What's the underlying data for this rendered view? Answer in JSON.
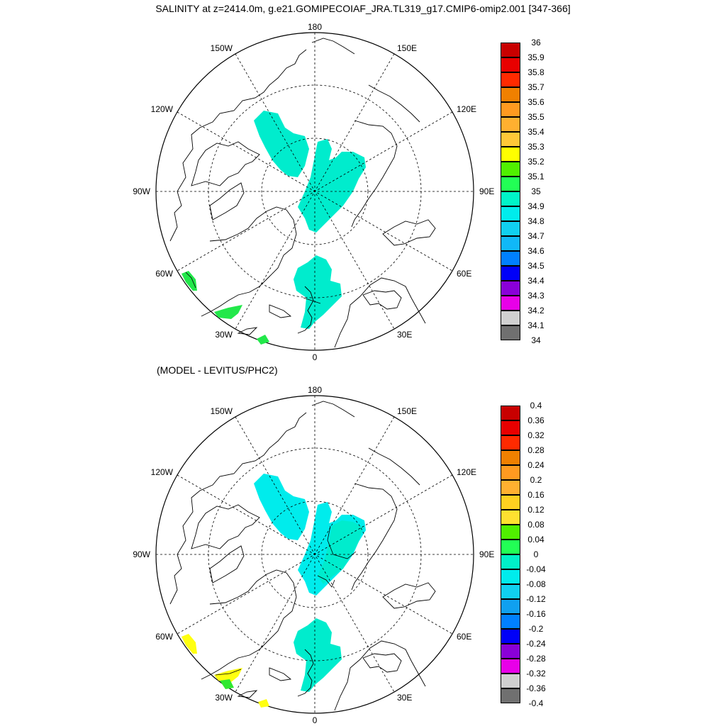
{
  "title": "SALINITY at z=2414.0m, g.e21.GOMIPECOIAF_JRA.TL319_g17.CMIP6-omip2.001 [347-366]",
  "panels": [
    {
      "subtitle": "",
      "lon_labels": {
        "top": "180",
        "bottom": "0",
        "left": "90W",
        "right": "90E",
        "ul150": "150W",
        "ur150": "150E",
        "ul120": "120W",
        "ur120": "120E",
        "ll60": "60W",
        "lr60": "60E",
        "ll30": "30W",
        "lr30": "30E"
      },
      "colorbar": {
        "labels": [
          "36",
          "35.9",
          "35.8",
          "35.7",
          "35.6",
          "35.5",
          "35.4",
          "35.3",
          "35.2",
          "35.1",
          "35",
          "34.9",
          "34.8",
          "34.7",
          "34.6",
          "34.5",
          "34.4",
          "34.3",
          "34.2",
          "34.1",
          "34"
        ],
        "colors": [
          "#c80000",
          "#e80000",
          "#ff2a00",
          "#f08000",
          "#ff9a20",
          "#ffb030",
          "#ffc838",
          "#ffff00",
          "#50f000",
          "#22ff55",
          "#00f5c8",
          "#00ecec",
          "#10d0f0",
          "#10b8f8",
          "#0080ff",
          "#0000f8",
          "#8a00d8",
          "#e800e8",
          "#d0d0d0",
          "#707070"
        ]
      },
      "field_colors": {
        "main": "#00eccd",
        "patch": "#22e84a"
      }
    },
    {
      "subtitle": "(MODEL - LEVITUS/PHC2)",
      "lon_labels": {
        "top": "180",
        "bottom": "0",
        "left": "90W",
        "right": "90E",
        "ul150": "150W",
        "ur150": "150E",
        "ul120": "120W",
        "ur120": "120E",
        "ll60": "60W",
        "lr60": "60E",
        "ll30": "30W",
        "lr30": "30E"
      },
      "colorbar": {
        "labels": [
          "0.4",
          "0.36",
          "0.32",
          "0.28",
          "0.24",
          "0.2",
          "0.16",
          "0.12",
          "0.08",
          "0.04",
          "0",
          "-0.04",
          "-0.08",
          "-0.12",
          "-0.16",
          "-0.2",
          "-0.24",
          "-0.28",
          "-0.32",
          "-0.36",
          "-0.4"
        ],
        "colors": [
          "#c80000",
          "#e80000",
          "#ff2a00",
          "#f08000",
          "#ff9a20",
          "#ffb030",
          "#ffd020",
          "#ffe030",
          "#50f000",
          "#22ff55",
          "#00f0c8",
          "#00ecec",
          "#10d0f0",
          "#10a0f0",
          "#0080ff",
          "#0000f8",
          "#8a00d8",
          "#e800e8",
          "#d0d0d0",
          "#707070"
        ]
      },
      "field_colors": {
        "main": "#00ecec",
        "secondary": "#00eccd",
        "patch": "#ffff10",
        "patch2": "#30e830"
      }
    }
  ]
}
